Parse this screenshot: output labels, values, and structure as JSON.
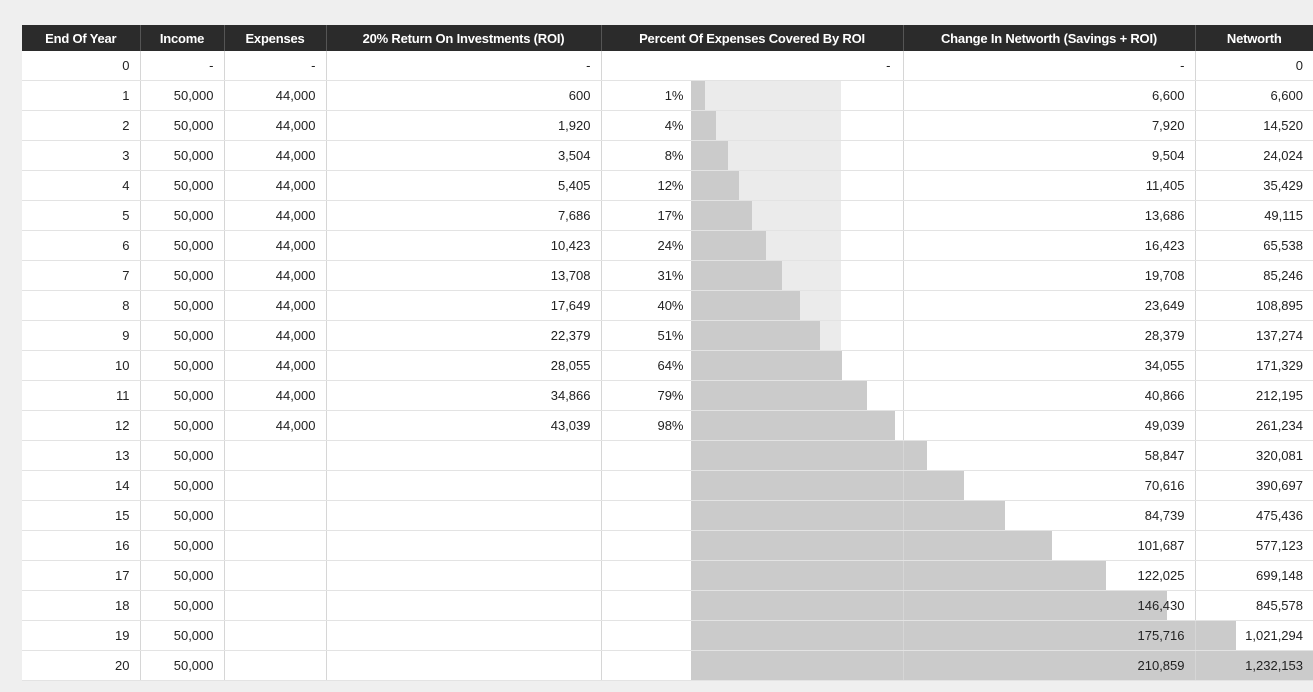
{
  "headers": {
    "year": "End Of Year",
    "income": "Income",
    "expenses": "Expenses",
    "roi": "20% Return On Investments (ROI)",
    "pct": "Percent Of Expenses Covered By ROI",
    "change": "Change In Networth (Savings + ROI)",
    "networth": "Networth"
  },
  "rows": [
    {
      "year": "0",
      "income": "-",
      "expenses": "-",
      "roi": "-",
      "pct": "",
      "pct_dash": "-",
      "change": "-",
      "networth": "0"
    },
    {
      "year": "1",
      "income": "50,000",
      "expenses": "44,000",
      "roi": "600",
      "pct": "1%",
      "pct_dash": "",
      "change": "6,600",
      "networth": "6,600"
    },
    {
      "year": "2",
      "income": "50,000",
      "expenses": "44,000",
      "roi": "1,920",
      "pct": "4%",
      "pct_dash": "",
      "change": "7,920",
      "networth": "14,520"
    },
    {
      "year": "3",
      "income": "50,000",
      "expenses": "44,000",
      "roi": "3,504",
      "pct": "8%",
      "pct_dash": "",
      "change": "9,504",
      "networth": "24,024"
    },
    {
      "year": "4",
      "income": "50,000",
      "expenses": "44,000",
      "roi": "5,405",
      "pct": "12%",
      "pct_dash": "",
      "change": "11,405",
      "networth": "35,429"
    },
    {
      "year": "5",
      "income": "50,000",
      "expenses": "44,000",
      "roi": "7,686",
      "pct": "17%",
      "pct_dash": "",
      "change": "13,686",
      "networth": "49,115"
    },
    {
      "year": "6",
      "income": "50,000",
      "expenses": "44,000",
      "roi": "10,423",
      "pct": "24%",
      "pct_dash": "",
      "change": "16,423",
      "networth": "65,538"
    },
    {
      "year": "7",
      "income": "50,000",
      "expenses": "44,000",
      "roi": "13,708",
      "pct": "31%",
      "pct_dash": "",
      "change": "19,708",
      "networth": "85,246"
    },
    {
      "year": "8",
      "income": "50,000",
      "expenses": "44,000",
      "roi": "17,649",
      "pct": "40%",
      "pct_dash": "",
      "change": "23,649",
      "networth": "108,895"
    },
    {
      "year": "9",
      "income": "50,000",
      "expenses": "44,000",
      "roi": "22,379",
      "pct": "51%",
      "pct_dash": "",
      "change": "28,379",
      "networth": "137,274"
    },
    {
      "year": "10",
      "income": "50,000",
      "expenses": "44,000",
      "roi": "28,055",
      "pct": "64%",
      "pct_dash": "",
      "change": "34,055",
      "networth": "171,329"
    },
    {
      "year": "11",
      "income": "50,000",
      "expenses": "44,000",
      "roi": "34,866",
      "pct": "79%",
      "pct_dash": "",
      "change": "40,866",
      "networth": "212,195"
    },
    {
      "year": "12",
      "income": "50,000",
      "expenses": "44,000",
      "roi": "43,039",
      "pct": "98%",
      "pct_dash": "",
      "change": "49,039",
      "networth": "261,234"
    },
    {
      "year": "13",
      "income": "50,000",
      "expenses": "",
      "roi": "",
      "pct": "",
      "pct_dash": "",
      "change": "58,847",
      "networth": "320,081"
    },
    {
      "year": "14",
      "income": "50,000",
      "expenses": "",
      "roi": "",
      "pct": "",
      "pct_dash": "",
      "change": "70,616",
      "networth": "390,697"
    },
    {
      "year": "15",
      "income": "50,000",
      "expenses": "",
      "roi": "",
      "pct": "",
      "pct_dash": "",
      "change": "84,739",
      "networth": "475,436"
    },
    {
      "year": "16",
      "income": "50,000",
      "expenses": "",
      "roi": "",
      "pct": "",
      "pct_dash": "",
      "change": "101,687",
      "networth": "577,123"
    },
    {
      "year": "17",
      "income": "50,000",
      "expenses": "",
      "roi": "",
      "pct": "",
      "pct_dash": "",
      "change": "122,025",
      "networth": "699,148"
    },
    {
      "year": "18",
      "income": "50,000",
      "expenses": "",
      "roi": "",
      "pct": "",
      "pct_dash": "",
      "change": "146,430",
      "networth": "845,578"
    },
    {
      "year": "19",
      "income": "50,000",
      "expenses": "",
      "roi": "",
      "pct": "",
      "pct_dash": "",
      "change": "175,716",
      "networth": "1,021,294"
    },
    {
      "year": "20",
      "income": "50,000",
      "expenses": "",
      "roi": "",
      "pct": "",
      "pct_dash": "",
      "change": "210,859",
      "networth": "1,232,153"
    }
  ],
  "colors": {
    "header_bg": "#2b2b2b",
    "bar_fill": "#cbcbcb",
    "page_bg": "#efefef"
  }
}
